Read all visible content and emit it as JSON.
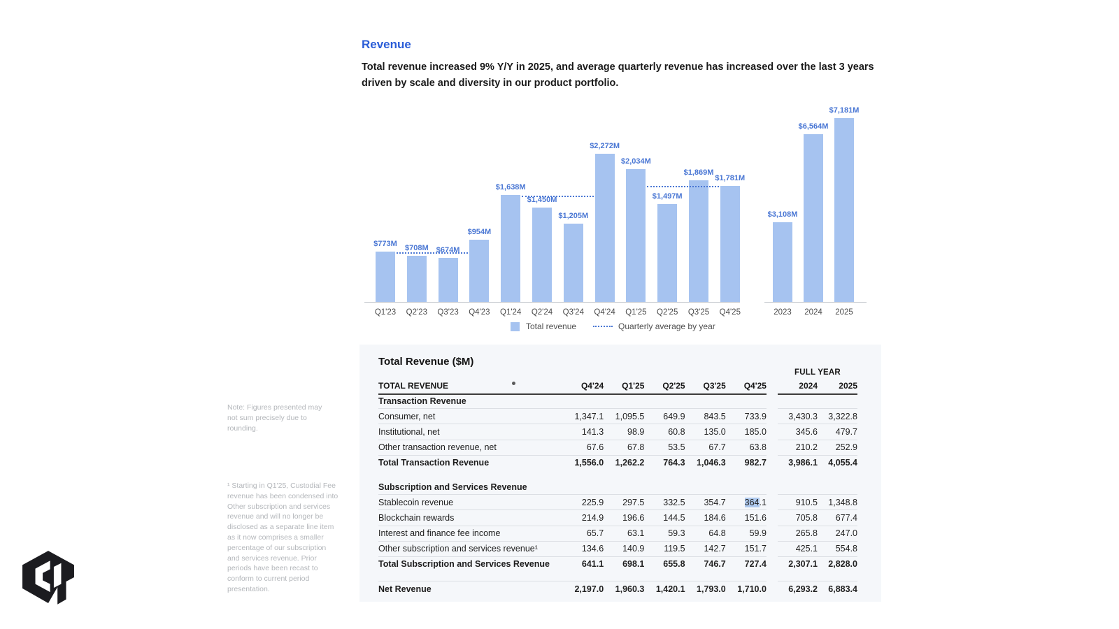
{
  "page": {
    "heading": "Revenue",
    "paragraph": "Total revenue increased 9% Y/Y in 2025, and average quarterly revenue has increased over the last 3 years driven by scale and diversity in our product portfolio."
  },
  "chart_data": {
    "type": "bar",
    "title": "",
    "legend": {
      "total": "Total revenue",
      "avg": "Quarterly average by year"
    },
    "quarterly": {
      "categories": [
        "Q1'23",
        "Q2'23",
        "Q3'23",
        "Q4'23",
        "Q1'24",
        "Q2'24",
        "Q3'24",
        "Q4'24",
        "Q1'25",
        "Q2'25",
        "Q3'25",
        "Q4'25"
      ],
      "values": [
        773,
        708,
        674,
        954,
        1638,
        1450,
        1205,
        2272,
        2034,
        1497,
        1869,
        1781
      ],
      "labels": [
        "$773M",
        "$708M",
        "$674M",
        "$954M",
        "$1,638M",
        "$1,450M",
        "$1,205M",
        "$2,272M",
        "$2,034M",
        "$1,497M",
        "$1,869M",
        "$1,781M"
      ],
      "ylim": [
        0,
        3040
      ]
    },
    "yearly": {
      "categories": [
        "2023",
        "2024",
        "2025"
      ],
      "values": [
        3108,
        6564,
        7181
      ],
      "labels": [
        "$3,108M",
        "$6,564M",
        "$7,181M"
      ],
      "ylim": [
        0,
        7740
      ]
    },
    "averages": [
      {
        "year": "2023",
        "value": 777,
        "span": [
          0,
          3
        ]
      },
      {
        "year": "2024",
        "value": 1641,
        "span": [
          4,
          7
        ]
      },
      {
        "year": "2025",
        "value": 1795,
        "span": [
          8,
          11
        ]
      }
    ],
    "grid": false,
    "legend_position": "bottom",
    "bar_color": "#a6c3f0",
    "label_color": "#4a77d4"
  },
  "table": {
    "title": "Total Revenue ($M)",
    "col_group_label": "FULL YEAR",
    "header": {
      "label": "TOTAL REVENUE",
      "quarters": [
        "Q4'24",
        "Q1'25",
        "Q2'25",
        "Q3'25",
        "Q4'25"
      ],
      "years": [
        "2024",
        "2025"
      ]
    },
    "rows": [
      {
        "label": "Transaction Revenue",
        "style": "section",
        "values": [
          "",
          "",
          "",
          "",
          "",
          "",
          ""
        ]
      },
      {
        "label": "Consumer, net",
        "style": "data",
        "values": [
          "1,347.1",
          "1,095.5",
          "649.9",
          "843.5",
          "733.9",
          "3,430.3",
          "3,322.8"
        ]
      },
      {
        "label": "Institutional, net",
        "style": "data",
        "values": [
          "141.3",
          "98.9",
          "60.8",
          "135.0",
          "185.0",
          "345.6",
          "479.7"
        ]
      },
      {
        "label": "Other transaction revenue, net",
        "style": "data",
        "values": [
          "67.6",
          "67.8",
          "53.5",
          "67.7",
          "63.8",
          "210.2",
          "252.9"
        ]
      },
      {
        "label": "Total Transaction Revenue",
        "style": "total",
        "values": [
          "1,556.0",
          "1,262.2",
          "764.3",
          "1,046.3",
          "982.7",
          "3,986.1",
          "4,055.4"
        ]
      },
      {
        "style": "gap"
      },
      {
        "label": "Subscription and Services Revenue",
        "style": "section",
        "values": [
          "",
          "",
          "",
          "",
          "",
          "",
          ""
        ]
      },
      {
        "label": "Stablecoin revenue",
        "style": "data",
        "values": [
          "225.9",
          "297.5",
          "332.5",
          "354.7",
          "364.1",
          "910.5",
          "1,348.8"
        ]
      },
      {
        "label": "Blockchain rewards",
        "style": "data",
        "values": [
          "214.9",
          "196.6",
          "144.5",
          "184.6",
          "151.6",
          "705.8",
          "677.4"
        ]
      },
      {
        "label": "Interest and finance fee income",
        "style": "data",
        "values": [
          "65.7",
          "63.1",
          "59.3",
          "64.8",
          "59.9",
          "265.8",
          "247.0"
        ]
      },
      {
        "label": "Other subscription and services revenue¹",
        "style": "data",
        "values": [
          "134.6",
          "140.9",
          "119.5",
          "142.7",
          "151.7",
          "425.1",
          "554.8"
        ]
      },
      {
        "label": "Total Subscription and Services Revenue",
        "style": "total",
        "values": [
          "641.1",
          "698.1",
          "655.8",
          "746.7",
          "727.4",
          "2,307.1",
          "2,828.0"
        ]
      },
      {
        "style": "gap"
      },
      {
        "label": "Net Revenue",
        "style": "net",
        "values": [
          "2,197.0",
          "1,960.3",
          "1,420.1",
          "1,793.0",
          "1,710.0",
          "6,293.2",
          "6,883.4"
        ]
      }
    ],
    "selection": {
      "row_label": "Stablecoin revenue",
      "column": "Q4'25",
      "cell_index": 4,
      "selected_text": "364",
      "rest_text": ".1"
    }
  },
  "side_notes": {
    "rounding_note": "Note: Figures presented may not sum precisely due to rounding.",
    "footnote": "¹ Starting in Q1'25, Custodial Fee revenue has been condensed into Other subscription and services revenue and will no longer be disclosed as a separate line item as it now comprises a smaller percentage of our subscription and services revenue. Prior periods have been recast to conform to current period presentation."
  },
  "colors": {
    "accent_blue": "#2b5dd7",
    "bar_fill": "#a6c3f0",
    "bar_label_blue": "#4a77d4",
    "selection_highlight": "#aec9ee",
    "table_background": "#f5f7fa",
    "note_gray": "#b4b7bb",
    "logo_black": "#1c1c20"
  }
}
